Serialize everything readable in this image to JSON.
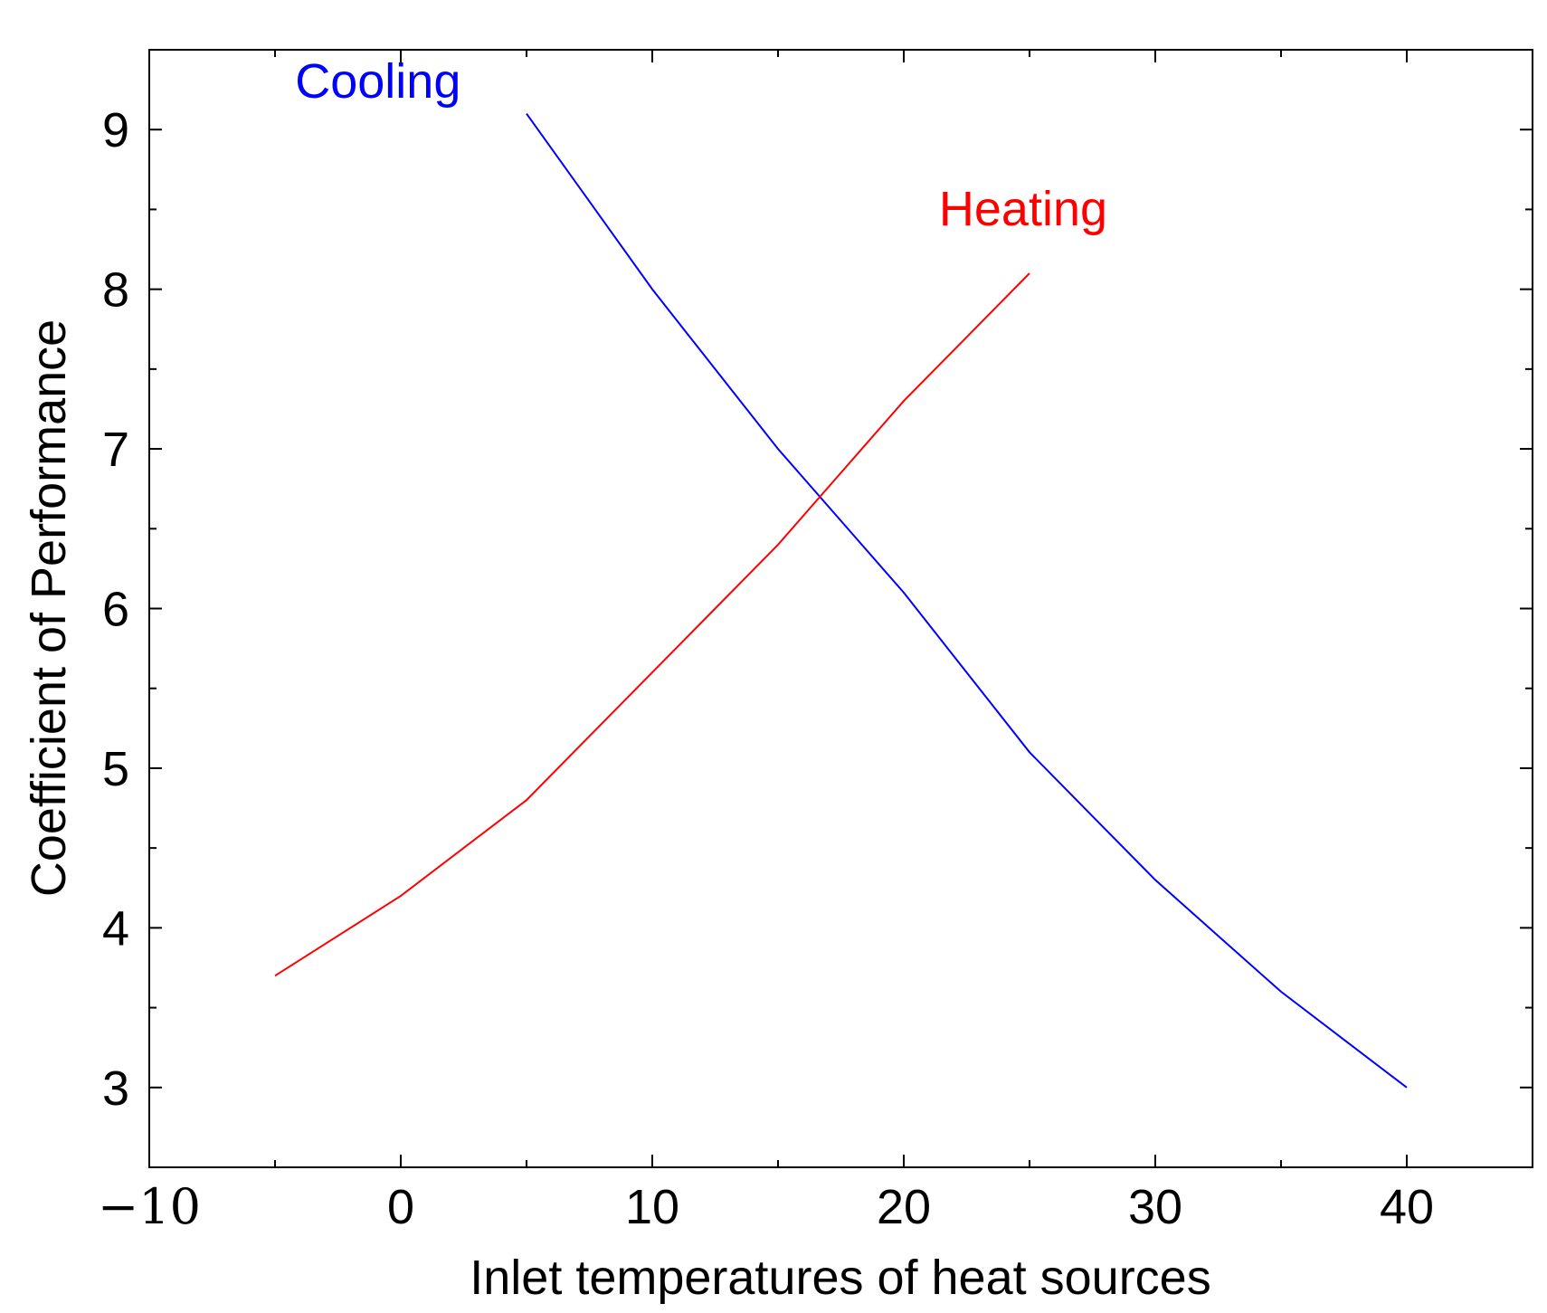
{
  "chart_data": {
    "type": "line",
    "title": "",
    "xlabel": "Inlet temperatures of heat sources",
    "ylabel": "Coefficient of Performance",
    "xlim": [
      -10,
      45
    ],
    "ylim": [
      2.5,
      9.5
    ],
    "grid": false,
    "x_ticks": [
      {
        "value": -10,
        "label": "−10"
      },
      {
        "value": 0,
        "label": "0"
      },
      {
        "value": 10,
        "label": "10"
      },
      {
        "value": 20,
        "label": "20"
      },
      {
        "value": 30,
        "label": "30"
      },
      {
        "value": 40,
        "label": "40"
      }
    ],
    "y_ticks": [
      {
        "value": 3,
        "label": "3"
      },
      {
        "value": 4,
        "label": "4"
      },
      {
        "value": 5,
        "label": "5"
      },
      {
        "value": 6,
        "label": "6"
      },
      {
        "value": 7,
        "label": "7"
      },
      {
        "value": 8,
        "label": "8"
      },
      {
        "value": 9,
        "label": "9"
      }
    ],
    "series": [
      {
        "name": "Cooling",
        "color": "#0000ff",
        "x": [
          5,
          7.5,
          10,
          12.5,
          15,
          17.5,
          20,
          22.5,
          25,
          27.5,
          30,
          32.5,
          35,
          37.5,
          40
        ],
        "values": [
          9.1,
          8.55,
          8.0,
          7.5,
          7.0,
          6.55,
          6.1,
          5.6,
          5.1,
          4.7,
          4.3,
          3.95,
          3.6,
          3.3,
          3.0
        ],
        "label": "Cooling",
        "label_at": {
          "x": -4.2,
          "y": 9.2
        }
      },
      {
        "name": "Heating",
        "color": "#ff0000",
        "x": [
          -5,
          -2.5,
          0,
          2.5,
          5,
          7.5,
          10,
          12.5,
          15,
          17.5,
          20,
          22.5,
          25
        ],
        "values": [
          3.7,
          3.95,
          4.2,
          4.5,
          4.8,
          5.2,
          5.6,
          6.0,
          6.4,
          6.85,
          7.3,
          7.7,
          8.1
        ],
        "label": "Heating",
        "label_at": {
          "x": 21.4,
          "y": 8.4
        }
      }
    ]
  }
}
